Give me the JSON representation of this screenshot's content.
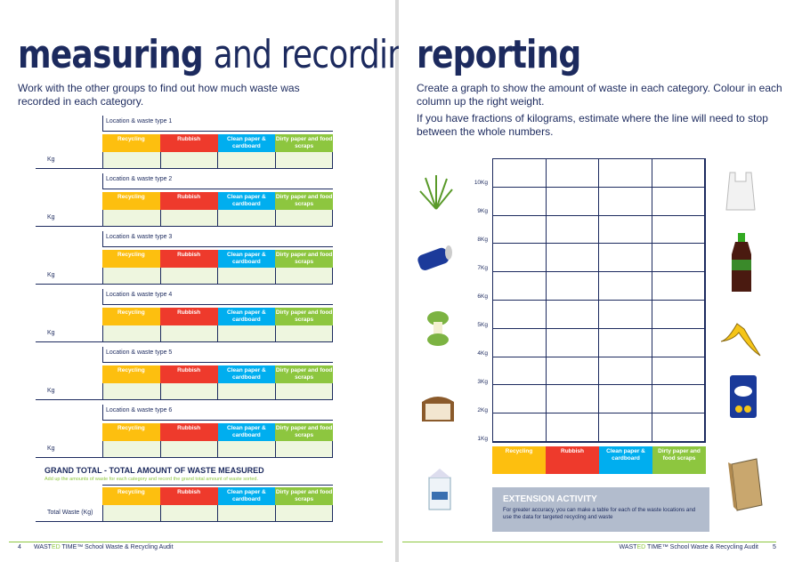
{
  "left": {
    "title_bold": "measuring",
    "title_light": "and recording",
    "intro": "Work with the other groups to find out how much waste was recorded in each category.",
    "categories": [
      "Recycling",
      "Rubbish",
      "Clean paper & cardboard",
      "Dirty paper and food scraps"
    ],
    "blocks": [
      {
        "label": "Location & waste type 1",
        "row": "Kg"
      },
      {
        "label": "Location & waste type 2",
        "row": "Kg"
      },
      {
        "label": "Location & waste type 3",
        "row": "Kg"
      },
      {
        "label": "Location & waste type 4",
        "row": "Kg"
      },
      {
        "label": "Location & waste type 5",
        "row": "Kg"
      },
      {
        "label": "Location & waste type 6",
        "row": "Kg"
      }
    ],
    "grand_title": "GRAND TOTAL - TOTAL AMOUNT OF WASTE MEASURED",
    "grand_sub": "Add up the amounts of waste for each category and record the grand total amount of waste sorted.",
    "grand_row": "Total Waste (Kg)",
    "page_num": "4"
  },
  "footer": {
    "brand_a": "WAST",
    "brand_b": "ED",
    "brand_c": " TIME™ School Waste & Recycling Audit"
  },
  "right": {
    "title": "reporting",
    "intro1": "Create a graph to show the amount of waste in each category. Colour in each column up the right weight.",
    "intro2": "If you have fractions of kilograms, estimate where the line will need to stop between the whole numbers.",
    "y_labels": [
      "10Kg",
      "9Kg",
      "8Kg",
      "7Kg",
      "6Kg",
      "5Kg",
      "4Kg",
      "3Kg",
      "2Kg",
      "1Kg"
    ],
    "ext_title": "EXTENSION ACTIVITY",
    "ext_text": "For greater accuracy, you can make a table for each of the waste locations and use the data for targeted recycling and waste",
    "page_num": "5"
  }
}
